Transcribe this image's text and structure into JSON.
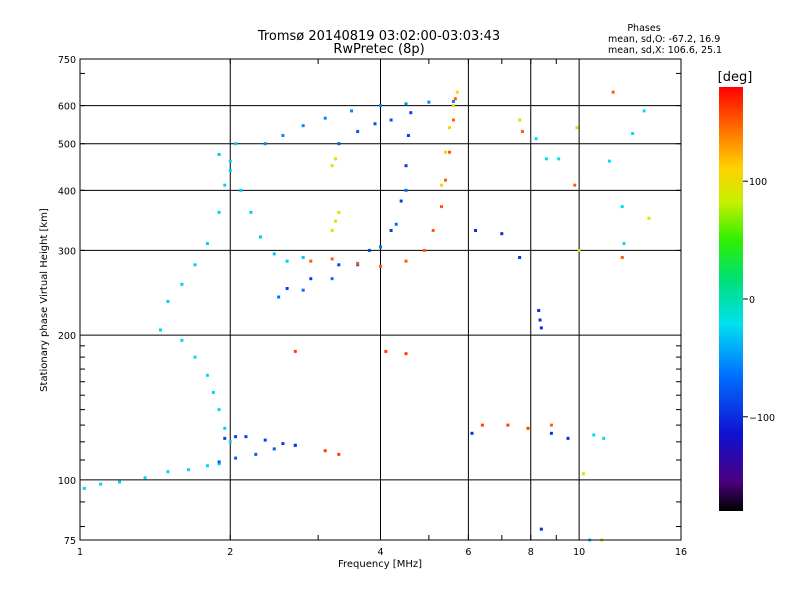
{
  "chart_data": {
    "type": "scatter",
    "title": "Tromsø 20140819 03:02:00-03:03:43",
    "subtitle": "RwPretec (8p)",
    "xlabel": "Frequency [MHz]",
    "ylabel": "Stationary phase Virtual Height [km]",
    "x_scale": "log",
    "y_scale": "log",
    "xlim": [
      1,
      16
    ],
    "ylim": [
      75,
      750
    ],
    "x_ticks": [
      1,
      2,
      4,
      6,
      8,
      10,
      16
    ],
    "x_tick_labels": [
      "1",
      "2",
      "4",
      "6",
      "8",
      "10",
      "16"
    ],
    "y_ticks": [
      75,
      100,
      200,
      300,
      400,
      500,
      600,
      750
    ],
    "y_tick_labels": [
      "75",
      "100",
      "200",
      "300",
      "400",
      "500",
      "600",
      "750"
    ],
    "grid": true,
    "stats": {
      "heading": "Phases",
      "o_line": "mean, sd,O: -67.2, 16.9",
      "x_line": "mean, sd,X: 106.6, 25.1"
    },
    "colorbar": {
      "unit": "[deg]",
      "range": [
        -180,
        180
      ],
      "ticks": [
        100,
        0,
        -100
      ],
      "tick_labels": [
        "100",
        "0",
        "−100"
      ],
      "colormap": "rainbow"
    },
    "series": [
      {
        "traces": [
          {
            "phase": -25,
            "points": [
              [
                1.02,
                96
              ],
              [
                1.1,
                98
              ],
              [
                1.2,
                99
              ],
              [
                1.35,
                101
              ],
              [
                1.5,
                104
              ],
              [
                1.65,
                105
              ],
              [
                1.8,
                107
              ],
              [
                1.9,
                108
              ]
            ]
          },
          {
            "phase": -75,
            "points": [
              [
                1.9,
                109
              ],
              [
                2.05,
                111
              ],
              [
                2.25,
                113
              ],
              [
                2.45,
                116
              ],
              [
                2.7,
                118
              ]
            ]
          },
          {
            "phase": -90,
            "points": [
              [
                1.95,
                122
              ],
              [
                2.05,
                123
              ],
              [
                2.15,
                123
              ],
              [
                2.35,
                121
              ],
              [
                2.55,
                119
              ],
              [
                2.7,
                118
              ]
            ]
          },
          {
            "phase": -25,
            "points": [
              [
                1.45,
                205
              ],
              [
                1.6,
                195
              ],
              [
                1.7,
                180
              ],
              [
                1.8,
                165
              ],
              [
                1.85,
                152
              ],
              [
                1.9,
                140
              ],
              [
                1.95,
                128
              ],
              [
                2.0,
                120
              ]
            ]
          },
          {
            "phase": -28,
            "points": [
              [
                1.5,
                235
              ],
              [
                1.6,
                255
              ],
              [
                1.7,
                280
              ],
              [
                1.8,
                310
              ],
              [
                1.9,
                360
              ],
              [
                1.95,
                410
              ],
              [
                2.0,
                460
              ],
              [
                2.05,
                500
              ]
            ]
          },
          {
            "phase": -30,
            "points": [
              [
                1.9,
                475
              ],
              [
                2.0,
                440
              ],
              [
                2.1,
                400
              ],
              [
                2.2,
                360
              ],
              [
                2.3,
                320
              ],
              [
                2.45,
                295
              ],
              [
                2.6,
                285
              ],
              [
                2.8,
                290
              ]
            ]
          },
          {
            "phase": -55,
            "points": [
              [
                2.35,
                500
              ],
              [
                2.55,
                520
              ],
              [
                2.8,
                545
              ],
              [
                3.1,
                565
              ],
              [
                3.5,
                585
              ],
              [
                4.0,
                600
              ],
              [
                4.5,
                605
              ],
              [
                5.0,
                610
              ],
              [
                5.6,
                612
              ]
            ]
          },
          {
            "phase": -90,
            "points": [
              [
                2.6,
                250
              ],
              [
                2.9,
                262
              ],
              [
                3.3,
                280
              ],
              [
                3.8,
                300
              ],
              [
                4.2,
                330
              ],
              [
                4.4,
                380
              ],
              [
                4.5,
                450
              ],
              [
                4.55,
                520
              ],
              [
                4.6,
                580
              ]
            ]
          },
          {
            "phase": -65,
            "points": [
              [
                2.5,
                240
              ],
              [
                2.8,
                248
              ],
              [
                3.2,
                262
              ],
              [
                3.6,
                280
              ],
              [
                4.0,
                305
              ],
              [
                4.3,
                340
              ],
              [
                4.5,
                400
              ]
            ]
          },
          {
            "phase": -80,
            "points": [
              [
                3.3,
                500
              ],
              [
                3.6,
                530
              ],
              [
                3.9,
                550
              ],
              [
                4.2,
                560
              ]
            ]
          },
          {
            "phase": 150,
            "points": [
              [
                2.9,
                285
              ],
              [
                3.2,
                288
              ],
              [
                3.6,
                282
              ],
              [
                4.0,
                278
              ],
              [
                4.5,
                285
              ],
              [
                4.9,
                300
              ],
              [
                5.1,
                330
              ],
              [
                5.3,
                370
              ],
              [
                5.4,
                420
              ],
              [
                5.5,
                480
              ],
              [
                5.6,
                560
              ],
              [
                5.65,
                620
              ]
            ]
          },
          {
            "phase": 110,
            "points": [
              [
                5.3,
                410
              ],
              [
                5.4,
                480
              ],
              [
                5.5,
                540
              ],
              [
                5.6,
                600
              ],
              [
                5.7,
                640
              ]
            ]
          },
          {
            "phase": 95,
            "points": [
              [
                3.2,
                330
              ],
              [
                3.25,
                345
              ],
              [
                3.3,
                360
              ],
              [
                3.2,
                450
              ],
              [
                3.25,
                465
              ]
            ]
          },
          {
            "phase": 160,
            "points": [
              [
                2.7,
                185
              ],
              [
                3.1,
                115
              ],
              [
                3.3,
                113
              ],
              [
                4.1,
                185
              ],
              [
                4.5,
                183
              ],
              [
                6.4,
                130
              ],
              [
                7.2,
                130
              ],
              [
                7.9,
                128
              ]
            ]
          },
          {
            "phase": -100,
            "points": [
              [
                6.2,
                330
              ],
              [
                7.0,
                325
              ],
              [
                7.6,
                290
              ],
              [
                8.3,
                225
              ],
              [
                8.35,
                215
              ],
              [
                8.4,
                207
              ],
              [
                6.1,
                125
              ],
              [
                8.8,
                125
              ],
              [
                9.5,
                122
              ],
              [
                8.4,
                79
              ]
            ]
          },
          {
            "phase": -20,
            "points": [
              [
                8.6,
                465
              ],
              [
                9.1,
                465
              ],
              [
                11.5,
                460
              ],
              [
                12.2,
                370
              ],
              [
                12.3,
                310
              ],
              [
                13.5,
                585
              ],
              [
                12.8,
                525
              ],
              [
                8.2,
                512
              ],
              [
                10.5,
                75
              ],
              [
                10.7,
                124
              ],
              [
                11.2,
                122
              ]
            ]
          },
          {
            "phase": 150,
            "points": [
              [
                11.7,
                640
              ],
              [
                9.8,
                410
              ],
              [
                7.7,
                530
              ],
              [
                12.2,
                290
              ],
              [
                8.8,
                130
              ]
            ]
          },
          {
            "phase": 95,
            "points": [
              [
                10.0,
                300
              ],
              [
                7.6,
                560
              ],
              [
                9.9,
                540
              ],
              [
                11.1,
                75
              ],
              [
                13.8,
                350
              ],
              [
                10.2,
                103
              ]
            ]
          }
        ]
      }
    ]
  }
}
